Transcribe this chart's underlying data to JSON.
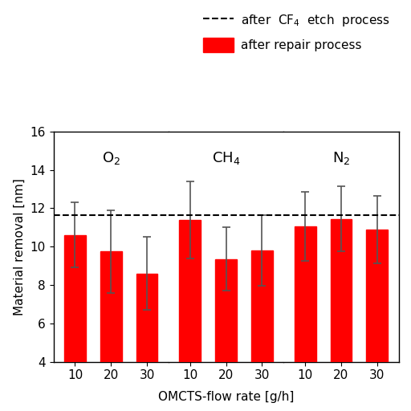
{
  "groups": [
    "O$_2$",
    "CH$_4$",
    "N$_2$"
  ],
  "x_labels": [
    "10",
    "20",
    "30"
  ],
  "bar_values": [
    [
      10.6,
      9.75,
      8.6
    ],
    [
      11.4,
      9.35,
      9.8
    ],
    [
      11.05,
      11.45,
      10.9
    ]
  ],
  "bar_errors": [
    [
      1.7,
      2.15,
      1.9
    ],
    [
      2.0,
      1.65,
      1.85
    ],
    [
      1.8,
      1.7,
      1.75
    ]
  ],
  "dashed_line_y": 11.65,
  "bar_color": "#FF0000",
  "error_color": "#555555",
  "ylabel": "Material removal [nm]",
  "xlabel": "OMCTS-flow rate [g/h]",
  "ylim": [
    4,
    16
  ],
  "yticks": [
    4,
    6,
    8,
    10,
    12,
    14,
    16
  ],
  "legend_dashed_label": "after  CF$_4$  etch  process",
  "legend_bar_label": "after repair process",
  "group_labels": [
    "O$_2$",
    "CH$_4$",
    "N$_2$"
  ],
  "fig_width": 5.12,
  "fig_height": 5.12
}
